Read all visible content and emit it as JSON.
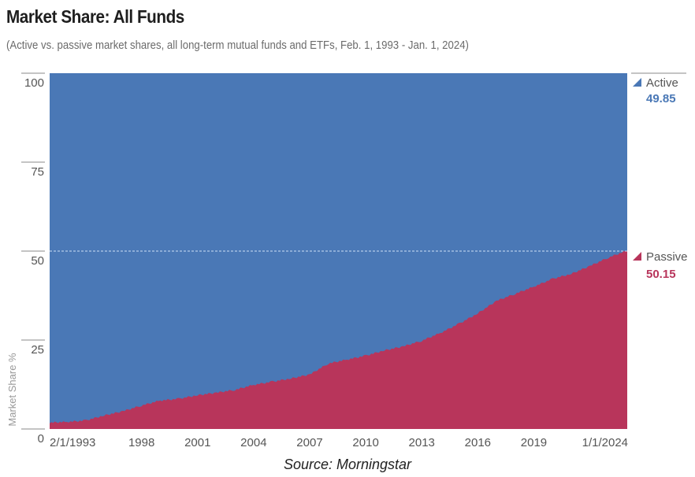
{
  "header": {
    "title": "Market Share: All Funds",
    "subtitle": "(Active vs. passive market shares, all long-term mutual funds and ETFs, Feb. 1, 1993 - Jan. 1, 2024)"
  },
  "footer": {
    "source": "Source: Morningstar"
  },
  "chart_data": {
    "type": "area",
    "stacked": true,
    "title": "Market Share: All Funds",
    "subtitle": "(Active vs. passive market shares, all long-term mutual funds and ETFs, Feb. 1, 1993 - Jan. 1, 2024)",
    "xlabel": "",
    "ylabel": "Market Share %",
    "xlim": [
      1993.08,
      2024.0
    ],
    "ylim": [
      0,
      100
    ],
    "x_ticks": [
      {
        "value": 1993.08,
        "label": "2/1/1993"
      },
      {
        "value": 1998,
        "label": "1998"
      },
      {
        "value": 2001,
        "label": "2001"
      },
      {
        "value": 2004,
        "label": "2004"
      },
      {
        "value": 2007,
        "label": "2007"
      },
      {
        "value": 2010,
        "label": "2010"
      },
      {
        "value": 2013,
        "label": "2013"
      },
      {
        "value": 2016,
        "label": "2016"
      },
      {
        "value": 2019,
        "label": "2019"
      },
      {
        "value": 2024.0,
        "label": "1/1/2024"
      }
    ],
    "y_ticks": [
      {
        "value": 0,
        "label": "0"
      },
      {
        "value": 25,
        "label": "25"
      },
      {
        "value": 50,
        "label": "50"
      },
      {
        "value": 75,
        "label": "75"
      },
      {
        "value": 100,
        "label": "100"
      }
    ],
    "reference_line": {
      "value": 50,
      "style": "dashed"
    },
    "x": [
      1993.08,
      1994,
      1995,
      1996,
      1997,
      1998,
      1999,
      2000,
      2001,
      2002,
      2003,
      2004,
      2005,
      2006,
      2007,
      2008,
      2009,
      2010,
      2011,
      2012,
      2013,
      2014,
      2015,
      2016,
      2017,
      2018,
      2019,
      2020,
      2021,
      2022,
      2023,
      2024.0
    ],
    "series": [
      {
        "name": "Passive",
        "color": "#b8355b",
        "final_value": "50.15",
        "values": [
          1.8,
          2.0,
          2.4,
          3.8,
          5.0,
          6.6,
          8.0,
          8.5,
          9.5,
          10.2,
          11.0,
          12.4,
          13.3,
          14.2,
          15.3,
          18.4,
          19.5,
          20.6,
          22.1,
          23.2,
          24.8,
          27.0,
          29.6,
          32.5,
          36.0,
          38.0,
          40.0,
          42.2,
          43.6,
          45.8,
          48.2,
          50.15
        ]
      },
      {
        "name": "Active",
        "color": "#4a78b6",
        "final_value": "49.85",
        "values": [
          98.2,
          98.0,
          97.6,
          96.2,
          95.0,
          93.4,
          92.0,
          91.5,
          90.5,
          89.8,
          89.0,
          87.6,
          86.7,
          85.8,
          84.7,
          81.6,
          80.5,
          79.4,
          77.9,
          76.8,
          75.2,
          73.0,
          70.4,
          67.5,
          64.0,
          62.0,
          60.0,
          57.8,
          56.4,
          54.2,
          51.8,
          49.85
        ]
      }
    ],
    "legend": "right"
  }
}
